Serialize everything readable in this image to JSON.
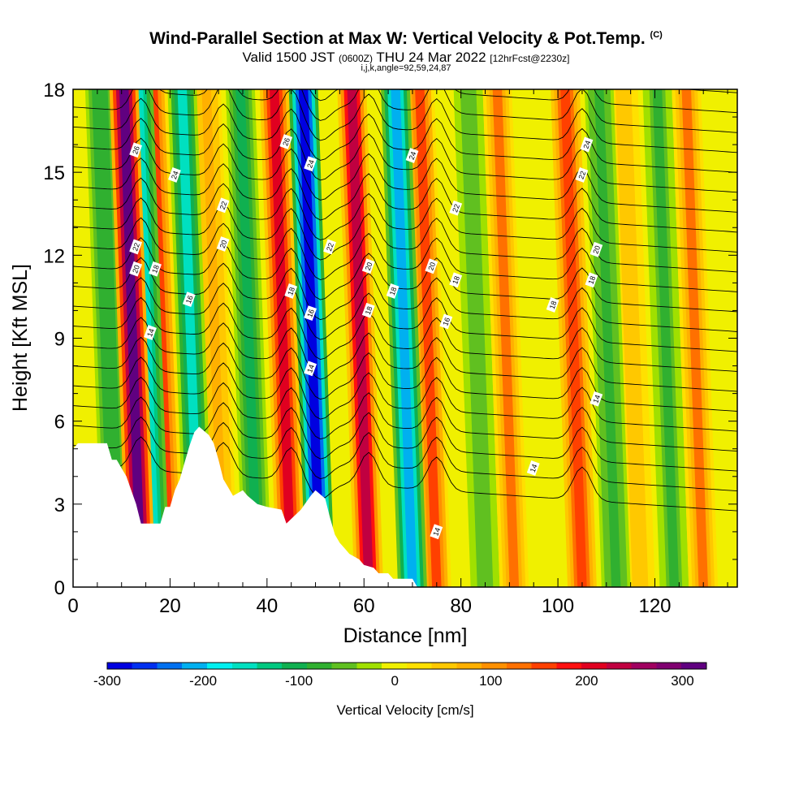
{
  "title": {
    "main": "Wind-Parallel Section at Max W: Vertical Velocity & Pot.Temp.",
    "main_tag": "(C)",
    "valid_prefix": "Valid 1500 JST",
    "valid_utc": "(0600Z)",
    "valid_date": "THU 24 Mar 2022",
    "forecast": "[12hrFcst@2230z]",
    "indices": "i,j,k,angle=92,59,24,87"
  },
  "chart_data": {
    "type": "heatmap",
    "xlabel": "Distance [nm]",
    "ylabel": "Height [Kft MSL]",
    "xlim": [
      0,
      137
    ],
    "ylim": [
      0,
      18
    ],
    "x_ticks": [
      0,
      20,
      40,
      60,
      80,
      100,
      120
    ],
    "y_ticks": [
      0,
      3,
      6,
      9,
      12,
      15,
      18
    ],
    "colorbar": {
      "label": "Vertical Velocity [cm/s]",
      "range": [
        -300,
        325
      ],
      "ticks": [
        -300,
        -200,
        -100,
        0,
        100,
        200,
        300
      ],
      "colors": [
        "#0000e0",
        "#0030f0",
        "#0070f0",
        "#00b0f0",
        "#00f0f0",
        "#00e0c0",
        "#00c880",
        "#10b050",
        "#30b030",
        "#60c020",
        "#a0e000",
        "#f0f000",
        "#ffe000",
        "#ffc800",
        "#ffb000",
        "#ff9000",
        "#ff7000",
        "#ff4000",
        "#ff1010",
        "#e00020",
        "#c00040",
        "#a00060",
        "#800070",
        "#600080"
      ]
    },
    "updraft_columns": [
      {
        "x": 14,
        "w": 300
      },
      {
        "x": 20,
        "w": 150
      },
      {
        "x": 31,
        "w": 80
      },
      {
        "x": 45,
        "w": 220
      },
      {
        "x": 61,
        "w": 230
      },
      {
        "x": 75,
        "w": 150
      },
      {
        "x": 91,
        "w": 120
      },
      {
        "x": 105,
        "w": 160
      },
      {
        "x": 117,
        "w": 60
      },
      {
        "x": 130,
        "w": 120
      }
    ],
    "downdraft_columns": [
      {
        "x": 9,
        "w": -90
      },
      {
        "x": 17,
        "w": -160
      },
      {
        "x": 26,
        "w": -150
      },
      {
        "x": 38,
        "w": -100
      },
      {
        "x": 51,
        "w": -300
      },
      {
        "x": 70,
        "w": -200
      },
      {
        "x": 85,
        "w": -60
      },
      {
        "x": 112,
        "w": -80
      },
      {
        "x": 124,
        "w": -70
      }
    ],
    "contour_labels": [
      {
        "x": 13,
        "y": 15.8,
        "text": "26"
      },
      {
        "x": 21,
        "y": 14.9,
        "text": "24"
      },
      {
        "x": 31,
        "y": 13.8,
        "text": "22"
      },
      {
        "x": 13,
        "y": 12.3,
        "text": "22"
      },
      {
        "x": 13,
        "y": 11.5,
        "text": "20"
      },
      {
        "x": 31,
        "y": 12.4,
        "text": "20"
      },
      {
        "x": 17,
        "y": 11.5,
        "text": "18"
      },
      {
        "x": 24,
        "y": 10.4,
        "text": "16"
      },
      {
        "x": 16,
        "y": 9.2,
        "text": "14"
      },
      {
        "x": 44,
        "y": 16.1,
        "text": "26"
      },
      {
        "x": 49,
        "y": 15.3,
        "text": "24"
      },
      {
        "x": 53,
        "y": 12.3,
        "text": "22"
      },
      {
        "x": 45,
        "y": 10.7,
        "text": "18"
      },
      {
        "x": 49,
        "y": 9.9,
        "text": "16"
      },
      {
        "x": 49,
        "y": 7.9,
        "text": "14"
      },
      {
        "x": 61,
        "y": 11.6,
        "text": "20"
      },
      {
        "x": 61,
        "y": 10.0,
        "text": "18"
      },
      {
        "x": 66,
        "y": 10.7,
        "text": "18"
      },
      {
        "x": 70,
        "y": 15.6,
        "text": "24"
      },
      {
        "x": 79,
        "y": 13.7,
        "text": "22"
      },
      {
        "x": 74,
        "y": 11.6,
        "text": "20"
      },
      {
        "x": 79,
        "y": 11.1,
        "text": "18"
      },
      {
        "x": 77,
        "y": 9.6,
        "text": "16"
      },
      {
        "x": 106,
        "y": 16.0,
        "text": "24"
      },
      {
        "x": 105,
        "y": 14.9,
        "text": "22"
      },
      {
        "x": 108,
        "y": 12.2,
        "text": "20"
      },
      {
        "x": 107,
        "y": 11.1,
        "text": "18"
      },
      {
        "x": 99,
        "y": 10.2,
        "text": "18"
      },
      {
        "x": 108,
        "y": 6.8,
        "text": "14"
      },
      {
        "x": 95,
        "y": 4.3,
        "text": "14"
      },
      {
        "x": 75,
        "y": 2.0,
        "text": "14"
      }
    ],
    "terrain_kft": [
      [
        0,
        5.0
      ],
      [
        1,
        5.2
      ],
      [
        7,
        5.2
      ],
      [
        8,
        4.6
      ],
      [
        9,
        4.6
      ],
      [
        10,
        4.3
      ],
      [
        11,
        4.0
      ],
      [
        12,
        3.5
      ],
      [
        13,
        3.0
      ],
      [
        14,
        2.3
      ],
      [
        18,
        2.3
      ],
      [
        19,
        2.9
      ],
      [
        20,
        2.9
      ],
      [
        21,
        3.5
      ],
      [
        22,
        3.9
      ],
      [
        23,
        4.5
      ],
      [
        24,
        5.1
      ],
      [
        25,
        5.6
      ],
      [
        26,
        5.8
      ],
      [
        28,
        5.5
      ],
      [
        29,
        5.2
      ],
      [
        30,
        4.6
      ],
      [
        31,
        3.9
      ],
      [
        32,
        3.6
      ],
      [
        33,
        3.3
      ],
      [
        35,
        3.5
      ],
      [
        36,
        3.3
      ],
      [
        38,
        3.0
      ],
      [
        40,
        2.9
      ],
      [
        43,
        2.8
      ],
      [
        44,
        2.3
      ],
      [
        47,
        2.8
      ],
      [
        49,
        3.3
      ],
      [
        50,
        3.5
      ],
      [
        52,
        3.2
      ],
      [
        53,
        2.5
      ],
      [
        54,
        1.9
      ],
      [
        55,
        1.6
      ],
      [
        56,
        1.4
      ],
      [
        57,
        1.2
      ],
      [
        59,
        1.0
      ],
      [
        60,
        0.8
      ],
      [
        62,
        0.7
      ],
      [
        63,
        0.5
      ],
      [
        65,
        0.5
      ],
      [
        66,
        0.3
      ],
      [
        70,
        0.3
      ],
      [
        71,
        0
      ],
      [
        137,
        0
      ]
    ]
  }
}
